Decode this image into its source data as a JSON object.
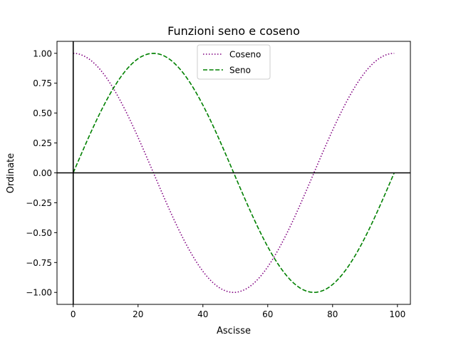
{
  "chart_data": {
    "type": "line",
    "title": "Funzioni seno e coseno",
    "xlabel": "Ascisse",
    "ylabel": "Ordinate",
    "xlim": [
      -5,
      104
    ],
    "ylim": [
      -1.1,
      1.1
    ],
    "x_ticks": [
      0,
      20,
      40,
      60,
      80,
      100
    ],
    "x_tick_labels": [
      "0",
      "20",
      "40",
      "60",
      "80",
      "100"
    ],
    "y_ticks": [
      -1.0,
      -0.75,
      -0.5,
      -0.25,
      0.0,
      0.25,
      0.5,
      0.75,
      1.0
    ],
    "y_tick_labels": [
      "−1.00",
      "−0.75",
      "−0.50",
      "−0.25",
      "0.00",
      "0.25",
      "0.50",
      "0.75",
      "1.00"
    ],
    "grid": false,
    "legend_position": "top-center",
    "x": {
      "start": 0,
      "end": 99,
      "step": 1
    },
    "series": [
      {
        "name": "Coseno",
        "function": "cos",
        "period": 99,
        "color": "#800080",
        "linestyle": "dotted"
      },
      {
        "name": "Seno",
        "function": "sin",
        "period": 99,
        "color": "#008000",
        "linestyle": "dashed"
      }
    ],
    "reference_lines": {
      "horizontal_at_y": 0,
      "vertical_at_x": 0,
      "color": "#000000"
    }
  }
}
